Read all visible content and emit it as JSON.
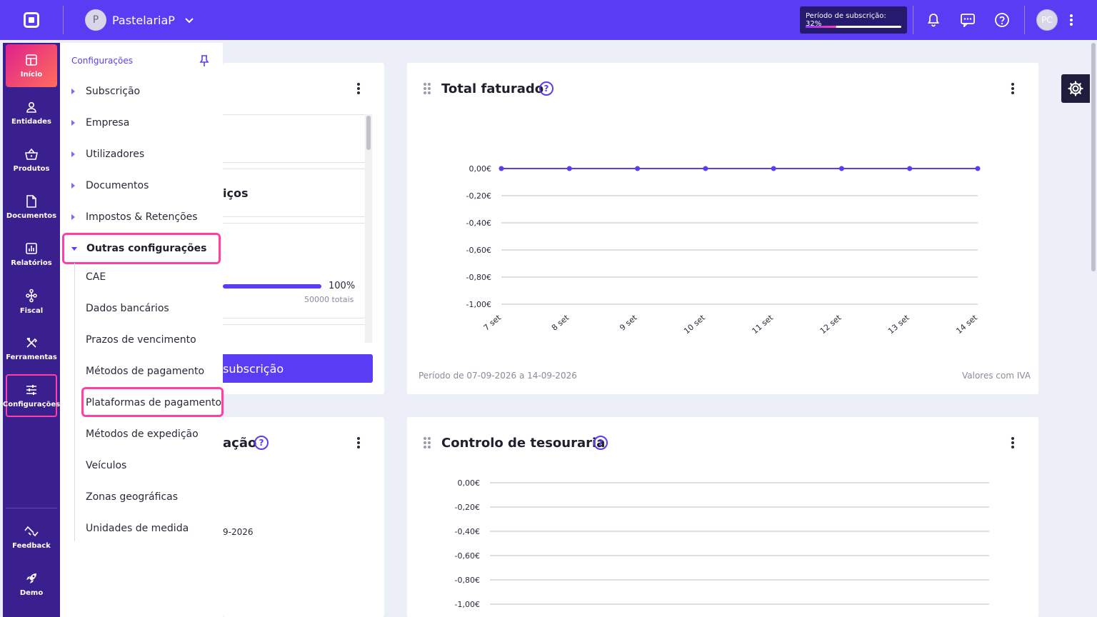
{
  "topbar": {
    "company_initial": "P",
    "company_name": "PastelariaP",
    "subscription_label": "Período de subscrição: 32%",
    "subscription_progress": 0.32,
    "user_initials": "PC"
  },
  "leftnav": {
    "items": [
      {
        "label": "Início",
        "icon": "home-grid-icon"
      },
      {
        "label": "Entidades",
        "icon": "person-icon"
      },
      {
        "label": "Produtos",
        "icon": "basket-icon"
      },
      {
        "label": "Documentos",
        "icon": "document-icon"
      },
      {
        "label": "Relatórios",
        "icon": "chart-icon"
      },
      {
        "label": "Fiscal",
        "icon": "hierarchy-icon"
      },
      {
        "label": "Ferramentas",
        "icon": "tools-icon"
      },
      {
        "label": "Configurações",
        "icon": "sliders-icon"
      }
    ],
    "bottom": [
      {
        "label": "Feedback",
        "icon": "feedback-icon"
      },
      {
        "label": "Demo",
        "icon": "rocket-icon"
      }
    ]
  },
  "settings_menu": {
    "title": "Configurações",
    "sections": [
      "Subscrição",
      "Empresa",
      "Utilizadores",
      "Documentos",
      "Impostos & Retenções",
      "Outras configurações"
    ],
    "subitems": [
      "CAE",
      "Dados bancários",
      "Prazos de vencimento",
      "Métodos de pagamento",
      "Plataformas de pagamento",
      "Métodos de expedição",
      "Veículos",
      "Zonas geográficas",
      "Unidades de medida"
    ]
  },
  "cards": {
    "left_top": {
      "partial_heading": "iços",
      "progress_pct": "100%",
      "progress_total": "50000 totais",
      "button_label": "subscrição"
    },
    "left_bottom": {
      "partial_title": "ação",
      "partial_date": "9-2026"
    },
    "total_faturado": {
      "title": "Total faturado",
      "footer_left": "Período de 07-09-2026 a 14-09-2026",
      "footer_right": "Valores com IVA"
    },
    "tesouraria": {
      "title": "Controlo de tesouraria"
    }
  },
  "chart_data": [
    {
      "type": "line",
      "title": "Total faturado",
      "categories": [
        "7 set",
        "8 set",
        "9 set",
        "10 set",
        "11 set",
        "12 set",
        "13 set",
        "14 set"
      ],
      "series": [
        {
          "values": [
            0,
            0,
            0,
            0,
            0,
            0,
            0,
            0
          ]
        }
      ],
      "yticks": [
        "0,00€",
        "-0,20€",
        "-0,40€",
        "-0,60€",
        "-0,80€",
        "-1,00€"
      ],
      "ylim": [
        -1,
        0
      ],
      "grid": true,
      "color": "#5b3cf5"
    },
    {
      "type": "line",
      "title": "Controlo de tesouraria",
      "yticks": [
        "0,00€",
        "-0,20€",
        "-0,40€",
        "-0,60€",
        "-0,80€",
        "-1,00€"
      ],
      "ylim": [
        -1,
        0
      ],
      "grid": true
    }
  ]
}
